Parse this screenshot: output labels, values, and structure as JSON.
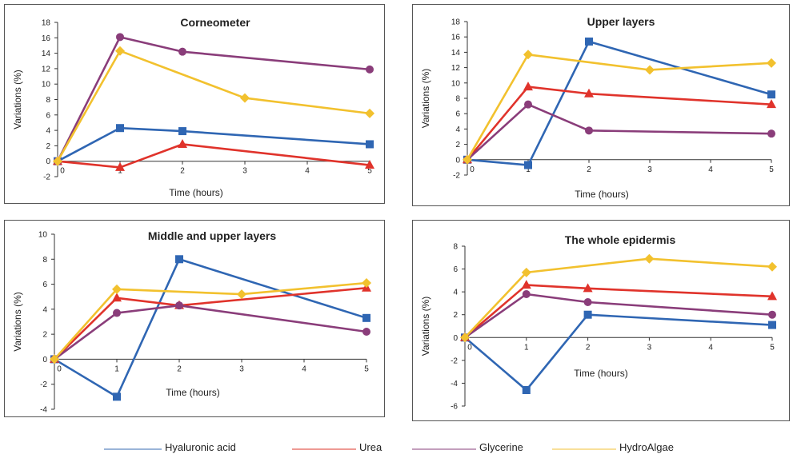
{
  "colors": {
    "hyaluronic": "#2f66b3",
    "urea": "#e0332b",
    "glycerine": "#8a3d7a",
    "hydroalgae": "#f2c12e"
  },
  "legend": [
    {
      "name": "Hyaluronic acid",
      "color": "#2f66b3"
    },
    {
      "name": "Urea",
      "color": "#e0332b"
    },
    {
      "name": "Glycerine",
      "color": "#8a3d7a"
    },
    {
      "name": "HydroAlgae",
      "color": "#f2c12e"
    }
  ],
  "chart_data": [
    {
      "type": "line",
      "title": "Corneometer",
      "xlabel": "Time (hours)",
      "ylabel": "Variations (%)",
      "xlim": [
        0,
        5
      ],
      "ylim": [
        -2,
        18
      ],
      "xticks": [
        0,
        1,
        2,
        3,
        4,
        5
      ],
      "yticks": [
        -2,
        0,
        2,
        4,
        6,
        8,
        10,
        12,
        14,
        16,
        18
      ],
      "grid": false,
      "series": [
        {
          "name": "Hyaluronic acid",
          "marker": "square",
          "color": "#2f66b3",
          "points": [
            [
              0,
              0
            ],
            [
              1,
              4.3
            ],
            [
              2,
              3.9
            ],
            [
              5,
              2.2
            ]
          ]
        },
        {
          "name": "Urea",
          "marker": "triangle",
          "color": "#e0332b",
          "points": [
            [
              0,
              0
            ],
            [
              1,
              -0.8
            ],
            [
              2,
              2.2
            ],
            [
              5,
              -0.5
            ]
          ]
        },
        {
          "name": "Glycerine",
          "marker": "circle",
          "color": "#8a3d7a",
          "points": [
            [
              0,
              0
            ],
            [
              1,
              16.1
            ],
            [
              2,
              14.2
            ],
            [
              5,
              11.9
            ]
          ]
        },
        {
          "name": "HydroAlgae",
          "marker": "diamond",
          "color": "#f2c12e",
          "points": [
            [
              0,
              0
            ],
            [
              1,
              14.3
            ],
            [
              3,
              8.2
            ],
            [
              5,
              6.2
            ]
          ]
        }
      ]
    },
    {
      "type": "line",
      "title": "Upper layers",
      "xlabel": "Time (hours)",
      "ylabel": "Variations (%)",
      "xlim": [
        0,
        5
      ],
      "ylim": [
        -2,
        18
      ],
      "xticks": [
        0,
        1,
        2,
        3,
        4,
        5
      ],
      "yticks": [
        -2,
        0,
        2,
        4,
        6,
        8,
        10,
        12,
        14,
        16,
        18
      ],
      "grid": false,
      "series": [
        {
          "name": "Hyaluronic acid",
          "marker": "square",
          "color": "#2f66b3",
          "points": [
            [
              0,
              0
            ],
            [
              1,
              -0.7
            ],
            [
              2,
              15.4
            ],
            [
              5,
              8.5
            ]
          ]
        },
        {
          "name": "Urea",
          "marker": "triangle",
          "color": "#e0332b",
          "points": [
            [
              0,
              0
            ],
            [
              1,
              9.5
            ],
            [
              2,
              8.6
            ],
            [
              5,
              7.2
            ]
          ]
        },
        {
          "name": "Glycerine",
          "marker": "circle",
          "color": "#8a3d7a",
          "points": [
            [
              0,
              0
            ],
            [
              1,
              7.2
            ],
            [
              2,
              3.8
            ],
            [
              5,
              3.4
            ]
          ]
        },
        {
          "name": "HydroAlgae",
          "marker": "diamond",
          "color": "#f2c12e",
          "points": [
            [
              0,
              0
            ],
            [
              1,
              13.7
            ],
            [
              3,
              11.7
            ],
            [
              5,
              12.6
            ]
          ]
        }
      ]
    },
    {
      "type": "line",
      "title": "Middle and upper layers",
      "xlabel": "Time (hours)",
      "ylabel": "Variations (%)",
      "xlim": [
        0,
        5
      ],
      "ylim": [
        -4,
        10
      ],
      "xticks": [
        0,
        1,
        2,
        3,
        4,
        5
      ],
      "yticks": [
        -4,
        -2,
        0,
        2,
        4,
        6,
        8,
        10
      ],
      "grid": false,
      "series": [
        {
          "name": "Hyaluronic acid",
          "marker": "square",
          "color": "#2f66b3",
          "points": [
            [
              0,
              0
            ],
            [
              1,
              -3
            ],
            [
              2,
              8
            ],
            [
              5,
              3.3
            ]
          ]
        },
        {
          "name": "Urea",
          "marker": "triangle",
          "color": "#e0332b",
          "points": [
            [
              0,
              0
            ],
            [
              1,
              4.9
            ],
            [
              2,
              4.3
            ],
            [
              5,
              5.7
            ]
          ]
        },
        {
          "name": "Glycerine",
          "marker": "circle",
          "color": "#8a3d7a",
          "points": [
            [
              0,
              0
            ],
            [
              1,
              3.7
            ],
            [
              2,
              4.3
            ],
            [
              5,
              2.2
            ]
          ]
        },
        {
          "name": "HydroAlgae",
          "marker": "diamond",
          "color": "#f2c12e",
          "points": [
            [
              0,
              0
            ],
            [
              1,
              5.6
            ],
            [
              3,
              5.2
            ],
            [
              5,
              6.1
            ]
          ]
        }
      ]
    },
    {
      "type": "line",
      "title": "The whole epidermis",
      "xlabel": "Time (hours)",
      "ylabel": "Variations (%)",
      "xlim": [
        0,
        5
      ],
      "ylim": [
        -6,
        8
      ],
      "xticks": [
        0,
        1,
        2,
        3,
        4,
        5
      ],
      "yticks": [
        -6,
        -4,
        -2,
        0,
        2,
        4,
        6,
        8
      ],
      "grid": false,
      "series": [
        {
          "name": "Hyaluronic acid",
          "marker": "square",
          "color": "#2f66b3",
          "points": [
            [
              0,
              0
            ],
            [
              1,
              -4.6
            ],
            [
              2,
              2
            ],
            [
              5,
              1.1
            ]
          ]
        },
        {
          "name": "Urea",
          "marker": "triangle",
          "color": "#e0332b",
          "points": [
            [
              0,
              0
            ],
            [
              1,
              4.6
            ],
            [
              2,
              4.3
            ],
            [
              5,
              3.6
            ]
          ]
        },
        {
          "name": "Glycerine",
          "marker": "circle",
          "color": "#8a3d7a",
          "points": [
            [
              0,
              0
            ],
            [
              1,
              3.8
            ],
            [
              2,
              3.1
            ],
            [
              5,
              2
            ]
          ]
        },
        {
          "name": "HydroAlgae",
          "marker": "diamond",
          "color": "#f2c12e",
          "points": [
            [
              0,
              0
            ],
            [
              1,
              5.7
            ],
            [
              3,
              6.9
            ],
            [
              5,
              6.2
            ]
          ]
        }
      ]
    }
  ]
}
